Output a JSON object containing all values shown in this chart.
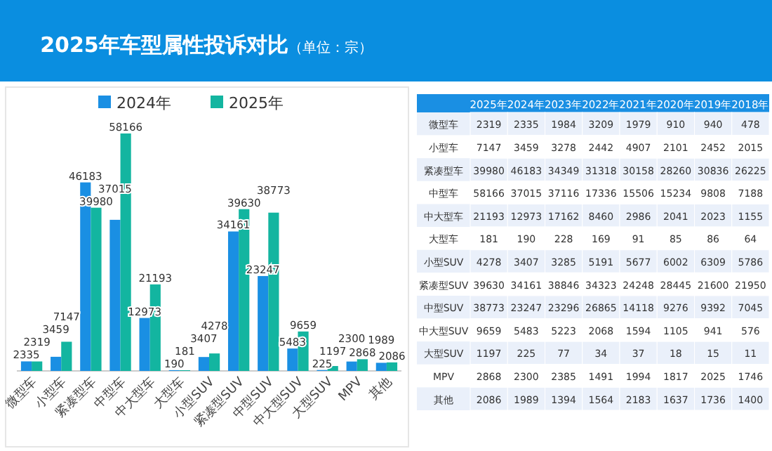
{
  "chart_data": [
    {
      "type": "bar",
      "title": "2025年车型属性投诉对比",
      "subtitle": "（单位：宗）",
      "categories": [
        "微型车",
        "小型车",
        "紧凑型车",
        "中型车",
        "中大型车",
        "大型车",
        "小型SUV",
        "紧凑型SUV",
        "中型SUV",
        "中大型SUV",
        "大型SUV",
        "MPV",
        "其他"
      ],
      "series": [
        {
          "name": "2024年",
          "color": "#1a8fe3",
          "values": [
            2335,
            3459,
            46183,
            37015,
            12973,
            190,
            3407,
            34161,
            23247,
            5483,
            225,
            2300,
            1989
          ]
        },
        {
          "name": "2025年",
          "color": "#13b5a0",
          "values": [
            2319,
            7147,
            39980,
            58166,
            21193,
            181,
            4278,
            39630,
            38773,
            9659,
            1197,
            2868,
            2086
          ]
        }
      ],
      "data_labels": true,
      "legend": "top"
    },
    {
      "type": "heatmap",
      "data_labels": true,
      "categories": [
        "2025年",
        "2024年",
        "2023年",
        "2022年",
        "2021年",
        "2020年",
        "2019年",
        "2018年"
      ],
      "y_categories": [
        "微型车",
        "小型车",
        "紧凑型车",
        "中型车",
        "中大型车",
        "大型车",
        "小型SUV",
        "紧凑型SUV",
        "中型SUV",
        "中大型SUV",
        "大型SUV",
        "MPV",
        "其他"
      ],
      "cells": [
        [
          2319,
          2335,
          1984,
          3209,
          1979,
          910,
          940,
          478
        ],
        [
          7147,
          3459,
          3278,
          2442,
          4907,
          2101,
          2452,
          2015
        ],
        [
          39980,
          46183,
          34349,
          31318,
          30158,
          28260,
          30836,
          26225
        ],
        [
          58166,
          37015,
          37116,
          17336,
          15506,
          15234,
          9808,
          7188
        ],
        [
          21193,
          12973,
          17162,
          8460,
          2986,
          2041,
          2023,
          1155
        ],
        [
          181,
          190,
          228,
          169,
          91,
          85,
          86,
          64
        ],
        [
          4278,
          3407,
          3285,
          5191,
          5677,
          6002,
          6309,
          5786
        ],
        [
          39630,
          34161,
          38846,
          34323,
          24248,
          28445,
          21600,
          21950
        ],
        [
          38773,
          23247,
          23296,
          26865,
          14118,
          9276,
          9392,
          7045
        ],
        [
          9659,
          5483,
          5223,
          2068,
          1594,
          1105,
          941,
          576
        ],
        [
          1197,
          225,
          77,
          34,
          37,
          18,
          15,
          11
        ],
        [
          2868,
          2300,
          2385,
          1491,
          1994,
          1817,
          2025,
          1746
        ],
        [
          2086,
          1989,
          1394,
          1564,
          2183,
          1637,
          1736,
          1400
        ]
      ]
    }
  ]
}
